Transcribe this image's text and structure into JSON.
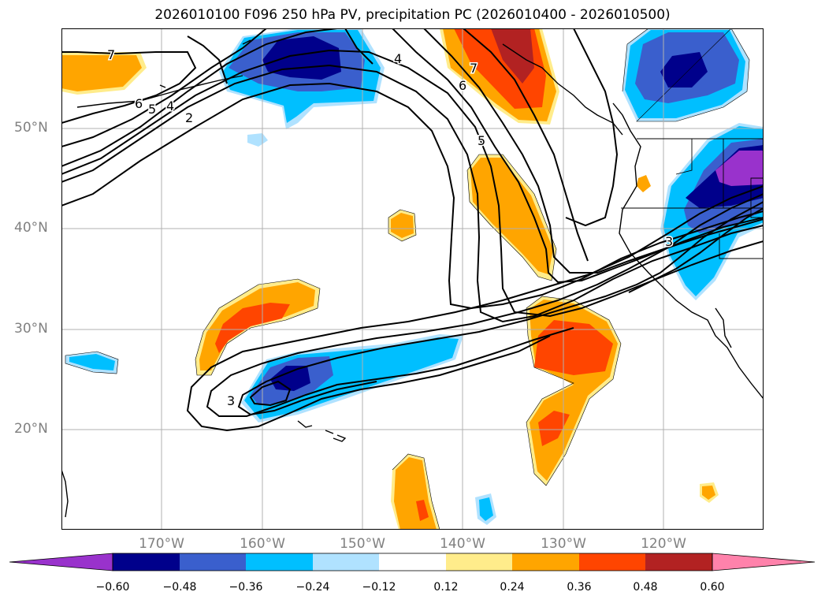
{
  "title": "2026010100 F096 250 hPa PV, precipitation PC (2026010400 - 2026010500)",
  "latitude_labels": [
    "50°N",
    "40°N",
    "30°N",
    "20°N"
  ],
  "longitude_labels": [
    "170°W",
    "160°W",
    "150°W",
    "140°W",
    "130°W",
    "120°W"
  ],
  "contour_labels": [
    "7",
    "6",
    "5",
    "4",
    "2",
    "4",
    "7",
    "6",
    "5",
    "3",
    "3"
  ],
  "colorbar": {
    "tick_labels": [
      "−0.60",
      "−0.48",
      "−0.36",
      "−0.24",
      "−0.12",
      "0.12",
      "0.24",
      "0.36",
      "0.48",
      "0.60"
    ],
    "colors": [
      "#9932cc",
      "#00008b",
      "#3a5fcd",
      "#00bfff",
      "#b0e2ff",
      "#ffffff",
      "#ffec8b",
      "#ffa500",
      "#ff4500",
      "#b22222",
      "#ff82ab"
    ]
  },
  "shading_colors": {
    "neg_light": "#b0e2ff",
    "neg_1": "#00bfff",
    "neg_2": "#3a5fcd",
    "neg_3": "#00008b",
    "neg_4": "#9932cc",
    "pos_light": "#ffec8b",
    "pos_1": "#ffa500",
    "pos_2": "#ff4500",
    "pos_3": "#b22222"
  }
}
